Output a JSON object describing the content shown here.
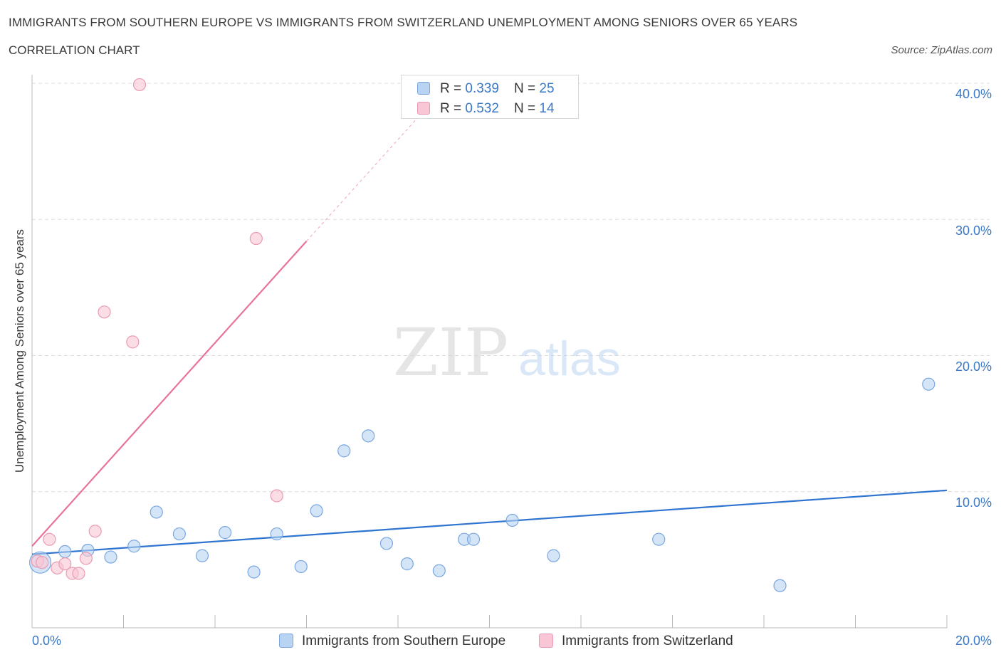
{
  "title": "IMMIGRANTS FROM SOUTHERN EUROPE VS IMMIGRANTS FROM SWITZERLAND UNEMPLOYMENT AMONG SENIORS OVER 65 YEARS",
  "subtitle": "CORRELATION CHART",
  "source": "Source: ZipAtlas.com",
  "watermark": {
    "zip": "ZIP",
    "atlas": "atlas"
  },
  "colors": {
    "blue_fill": "#b9d3f3",
    "blue_stroke": "#7aa7e0",
    "blue_line": "#2f74d0",
    "pink_fill": "#f8c6d4",
    "pink_stroke": "#eb9ab3",
    "pink_line": "#e8729a",
    "tick_text": "#3a78c8",
    "grid": "#dcdcdc"
  },
  "legend": {
    "r_label": "R = ",
    "n_label": "N = ",
    "series": [
      {
        "r": "0.339",
        "n": "25"
      },
      {
        "r": "0.532",
        "n": "14"
      }
    ]
  },
  "chart_data": {
    "type": "scatter",
    "title": "IMMIGRANTS FROM SOUTHERN EUROPE VS IMMIGRANTS FROM SWITZERLAND UNEMPLOYMENT AMONG SENIORS OVER 65 YEARS",
    "xlabel": "",
    "ylabel": "Unemployment Among Seniors over 65 years",
    "xlim": [
      0,
      20
    ],
    "ylim": [
      0,
      40
    ],
    "x_ticks": [
      "0.0%",
      "20.0%"
    ],
    "y_ticks": [
      {
        "value": 40,
        "label": "40.0%"
      },
      {
        "value": 30,
        "label": "30.0%"
      },
      {
        "value": 20,
        "label": "20.0%"
      },
      {
        "value": 10,
        "label": "10.0%"
      }
    ],
    "grid": true,
    "series": [
      {
        "name": "Immigrants from Southern Europe",
        "color": "blue",
        "points": [
          {
            "x": 0.18,
            "y": 4.8,
            "big": true
          },
          {
            "x": 0.72,
            "y": 5.6
          },
          {
            "x": 1.22,
            "y": 5.7
          },
          {
            "x": 1.72,
            "y": 5.2
          },
          {
            "x": 2.23,
            "y": 6.0
          },
          {
            "x": 2.72,
            "y": 8.5
          },
          {
            "x": 3.22,
            "y": 6.9
          },
          {
            "x": 3.72,
            "y": 5.3
          },
          {
            "x": 4.22,
            "y": 7.0
          },
          {
            "x": 4.85,
            "y": 4.1
          },
          {
            "x": 5.35,
            "y": 6.9
          },
          {
            "x": 5.88,
            "y": 4.5
          },
          {
            "x": 6.22,
            "y": 8.6
          },
          {
            "x": 6.82,
            "y": 13.0
          },
          {
            "x": 7.35,
            "y": 14.1
          },
          {
            "x": 7.75,
            "y": 6.2
          },
          {
            "x": 8.2,
            "y": 4.7
          },
          {
            "x": 8.9,
            "y": 4.2
          },
          {
            "x": 9.45,
            "y": 6.5
          },
          {
            "x": 9.65,
            "y": 6.5
          },
          {
            "x": 10.5,
            "y": 7.9
          },
          {
            "x": 11.4,
            "y": 5.3
          },
          {
            "x": 13.7,
            "y": 6.5
          },
          {
            "x": 16.35,
            "y": 3.1
          },
          {
            "x": 19.6,
            "y": 17.9
          }
        ],
        "trend": {
          "x0": 0,
          "y0": 5.4,
          "x1": 20,
          "y1": 10.1
        }
      },
      {
        "name": "Immigrants from Switzerland",
        "color": "pink",
        "points": [
          {
            "x": 0.12,
            "y": 4.9
          },
          {
            "x": 0.22,
            "y": 4.8
          },
          {
            "x": 0.38,
            "y": 6.5
          },
          {
            "x": 0.55,
            "y": 4.4
          },
          {
            "x": 0.72,
            "y": 4.7
          },
          {
            "x": 0.88,
            "y": 4.0
          },
          {
            "x": 1.02,
            "y": 4.0
          },
          {
            "x": 1.18,
            "y": 5.1
          },
          {
            "x": 1.38,
            "y": 7.1
          },
          {
            "x": 1.58,
            "y": 23.2
          },
          {
            "x": 2.2,
            "y": 21.0
          },
          {
            "x": 2.35,
            "y": 39.9
          },
          {
            "x": 4.9,
            "y": 28.6
          },
          {
            "x": 5.35,
            "y": 9.7
          }
        ],
        "trend": {
          "x0": 0,
          "y0": 6.0,
          "x1": 6.0,
          "y1": 28.4
        },
        "trend_dashed": {
          "x0": 6.0,
          "y0": 28.4,
          "x1": 8.6,
          "y1": 38.1
        }
      }
    ]
  },
  "bottom_legend": [
    {
      "label": "Immigrants from Southern Europe"
    },
    {
      "label": "Immigrants from Switzerland"
    }
  ]
}
